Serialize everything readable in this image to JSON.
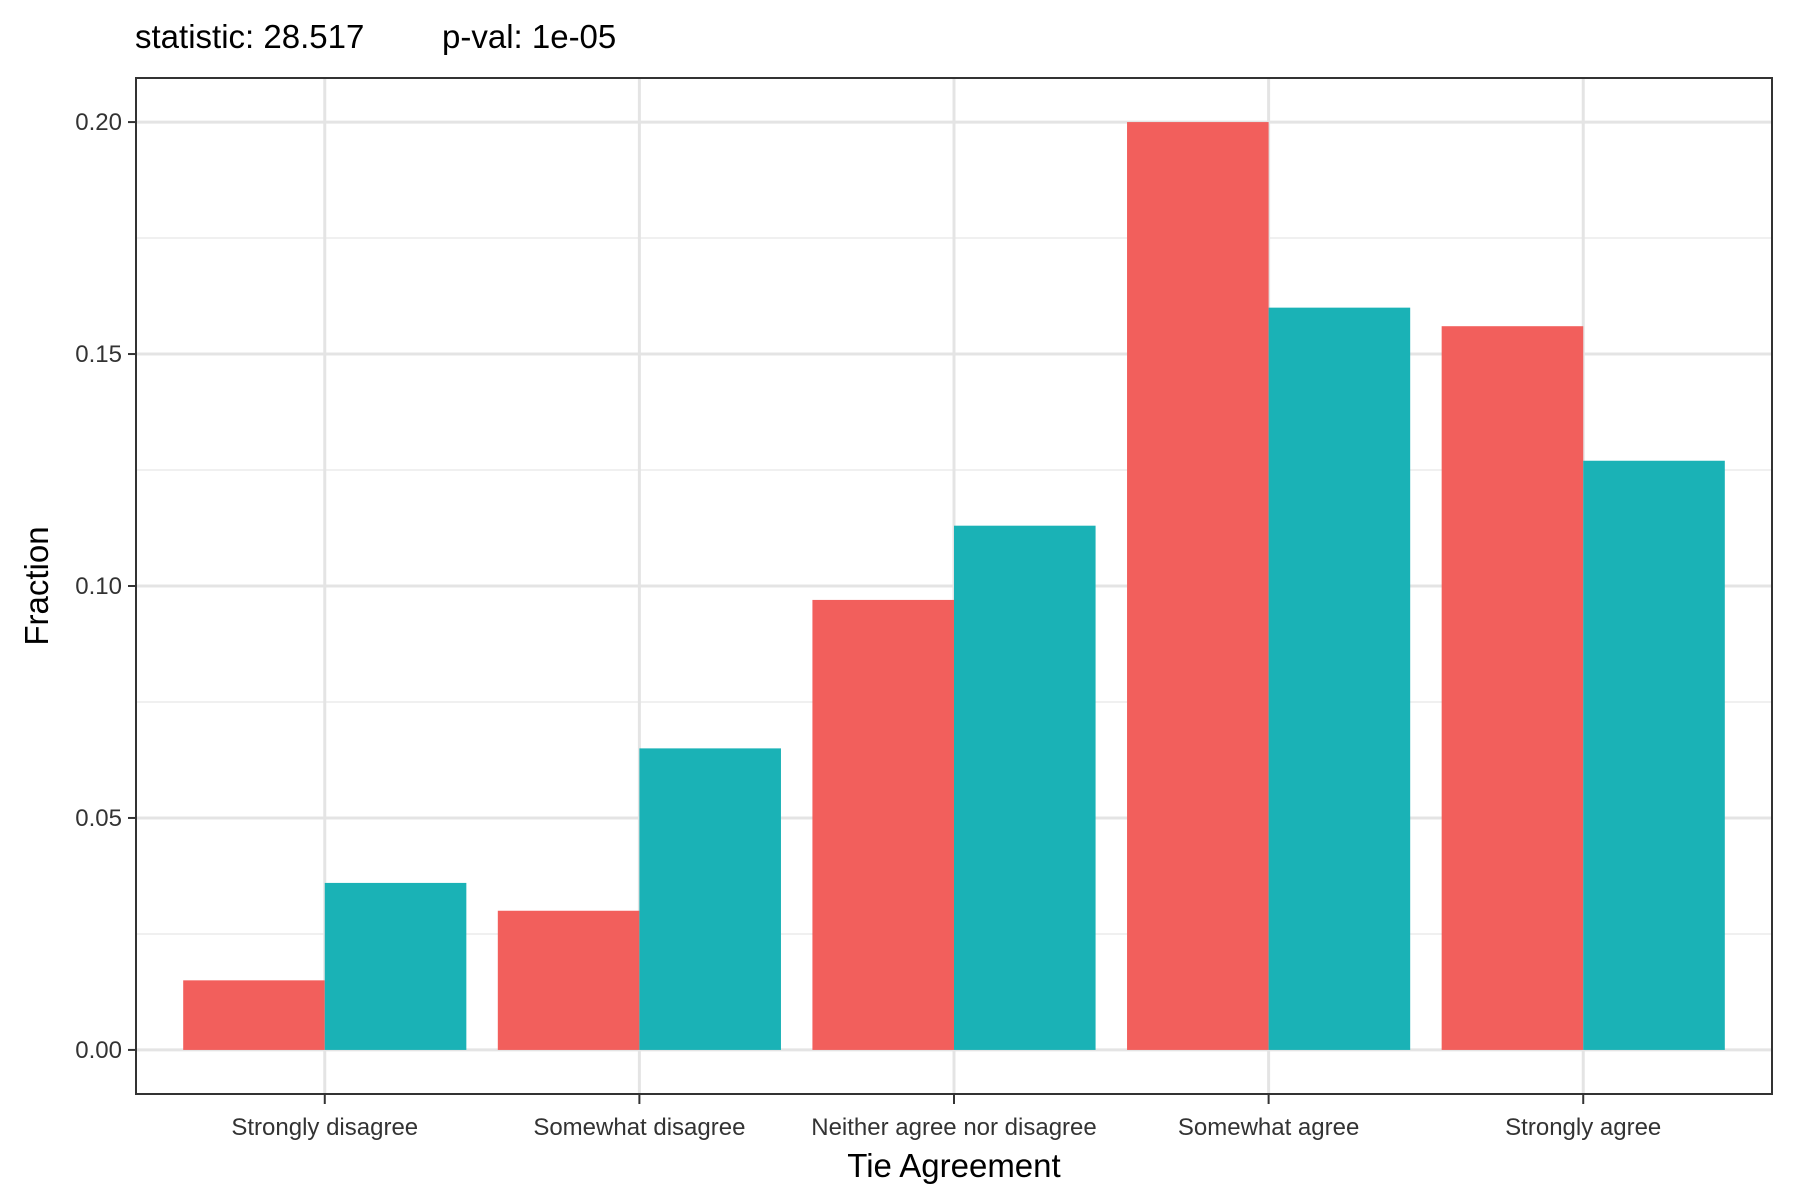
{
  "header": {
    "statistic": "statistic: 28.517",
    "pval": "p-val: 1e-05"
  },
  "chart_data": {
    "type": "bar",
    "title": "",
    "xlabel": "Tie Agreement",
    "ylabel": "Fraction",
    "categories": [
      "Strongly disagree",
      "Somewhat disagree",
      "Neither agree nor disagree",
      "Somewhat agree",
      "Strongly agree"
    ],
    "series": [
      {
        "values": [
          0.015,
          0.03,
          0.097,
          0.2,
          0.156
        ]
      },
      {
        "values": [
          0.036,
          0.065,
          0.113,
          0.16,
          0.127
        ]
      }
    ],
    "ylim": [
      -0.0095,
      0.2095
    ],
    "yticks": [
      0.0,
      0.05,
      0.1,
      0.15,
      0.2
    ],
    "ytick_labels": [
      "0.00",
      "0.05",
      "0.10",
      "0.15",
      "0.20"
    ],
    "grid": true,
    "legend": "none",
    "colors": [
      "#F25F5C",
      "#1AB2B6"
    ]
  }
}
